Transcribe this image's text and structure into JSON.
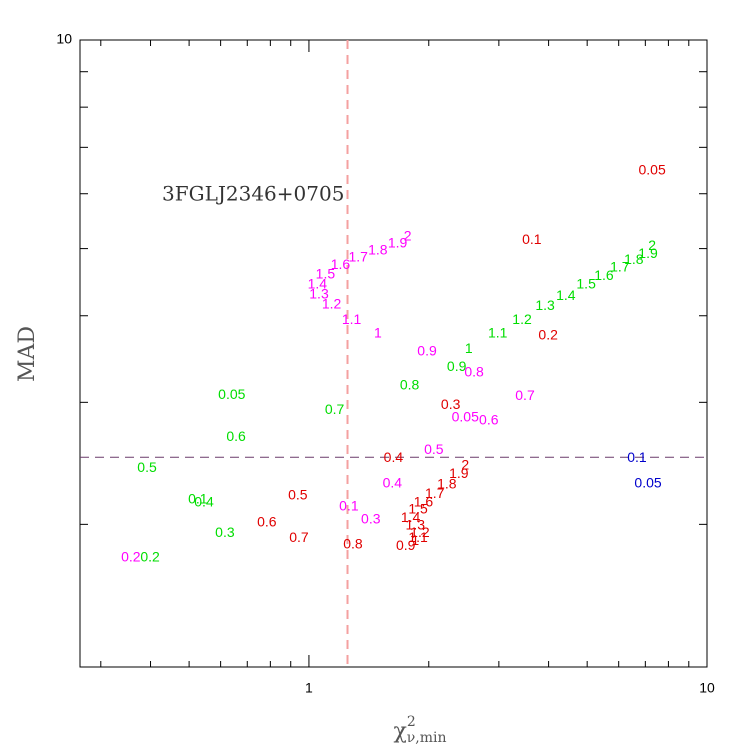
{
  "chart_data": {
    "type": "scatter",
    "title": "3FGLJ2346+0705",
    "x_label": {
      "base": "χ",
      "sup": "2",
      "sub": "ν,min"
    },
    "y_label": "MAD",
    "xlog": true,
    "ylog": true,
    "xlim": [
      0.266,
      10
    ],
    "ylim": [
      1.245,
      10
    ],
    "xticks": [
      1,
      10
    ],
    "yticks": [
      10
    ],
    "xminor": [
      0.3,
      0.4,
      0.5,
      0.6,
      0.7,
      0.8,
      0.9,
      2,
      3,
      4,
      5,
      6,
      7,
      8,
      9
    ],
    "yminor": [
      2,
      3,
      4,
      5,
      6,
      7,
      8,
      9
    ],
    "vline": {
      "value": 1.25,
      "color": "#f4a0a0"
    },
    "hline": {
      "value": 2.5,
      "color": "#6a3a6a"
    },
    "series": [
      {
        "color": "#e00000",
        "labels": [
          "0.05",
          "0.1",
          "0.2",
          "0.3",
          "0.4",
          "0.5",
          "0.6",
          "0.7",
          "0.8",
          "0.9",
          "1",
          "1.1",
          "1.2",
          "1.3",
          "1.4",
          "1.5",
          "1.6",
          "1.7",
          "1.8",
          "1.9",
          "2"
        ],
        "x": [
          7.28,
          3.63,
          3.99,
          2.27,
          1.63,
          0.938,
          0.784,
          0.944,
          1.29,
          1.75,
          1.85,
          1.88,
          1.9,
          1.85,
          1.8,
          1.88,
          1.94,
          2.07,
          2.22,
          2.38,
          2.47
        ],
        "y": [
          6.47,
          5.14,
          3.74,
          2.97,
          2.49,
          2.2,
          2.01,
          1.91,
          1.87,
          1.86,
          1.89,
          1.91,
          1.94,
          1.99,
          2.04,
          2.1,
          2.15,
          2.21,
          2.28,
          2.36,
          2.43
        ]
      },
      {
        "color": "#ff00ff",
        "labels": [
          "0.05",
          "0.1",
          "0.2",
          "0.3",
          "0.4",
          "0.5",
          "0.6",
          "0.7",
          "0.8",
          "0.9",
          "1",
          "1.1",
          "1.2",
          "1.3",
          "1.4",
          "1.5",
          "1.6",
          "1.7",
          "1.8",
          "1.9",
          "2"
        ],
        "x": [
          2.47,
          1.26,
          0.357,
          1.43,
          1.62,
          2.06,
          2.83,
          3.49,
          2.6,
          1.98,
          1.49,
          1.28,
          1.14,
          1.06,
          1.05,
          1.1,
          1.2,
          1.33,
          1.49,
          1.67,
          1.77
        ],
        "y": [
          2.85,
          2.12,
          1.79,
          2.03,
          2.29,
          2.56,
          2.82,
          3.06,
          3.31,
          3.55,
          3.77,
          3.94,
          4.15,
          4.29,
          4.43,
          4.58,
          4.73,
          4.85,
          4.96,
          5.08,
          5.2
        ]
      },
      {
        "color": "#00dd00",
        "labels": [
          "0.05",
          "0.1",
          "0.2",
          "0.3",
          "0.4",
          "0.5",
          "0.6",
          "0.7",
          "0.8",
          "0.9",
          "1",
          "1.1",
          "1.2",
          "1.3",
          "1.4",
          "1.5",
          "1.6",
          "1.7",
          "1.8",
          "1.9",
          "2"
        ],
        "x": [
          0.64,
          0.526,
          0.399,
          0.615,
          0.545,
          0.392,
          0.656,
          1.16,
          1.79,
          2.35,
          2.52,
          2.98,
          3.43,
          3.92,
          4.42,
          4.97,
          5.51,
          6.04,
          6.55,
          7.11,
          7.28
        ],
        "y": [
          3.07,
          2.17,
          1.79,
          1.94,
          2.15,
          2.41,
          2.67,
          2.92,
          3.17,
          3.37,
          3.58,
          3.77,
          3.94,
          4.13,
          4.27,
          4.43,
          4.56,
          4.69,
          4.81,
          4.91,
          5.04
        ]
      },
      {
        "color": "#0000cc",
        "labels": [
          "0.1",
          "0.05"
        ],
        "x": [
          6.67,
          7.11
        ],
        "y": [
          2.49,
          2.29
        ]
      }
    ]
  }
}
